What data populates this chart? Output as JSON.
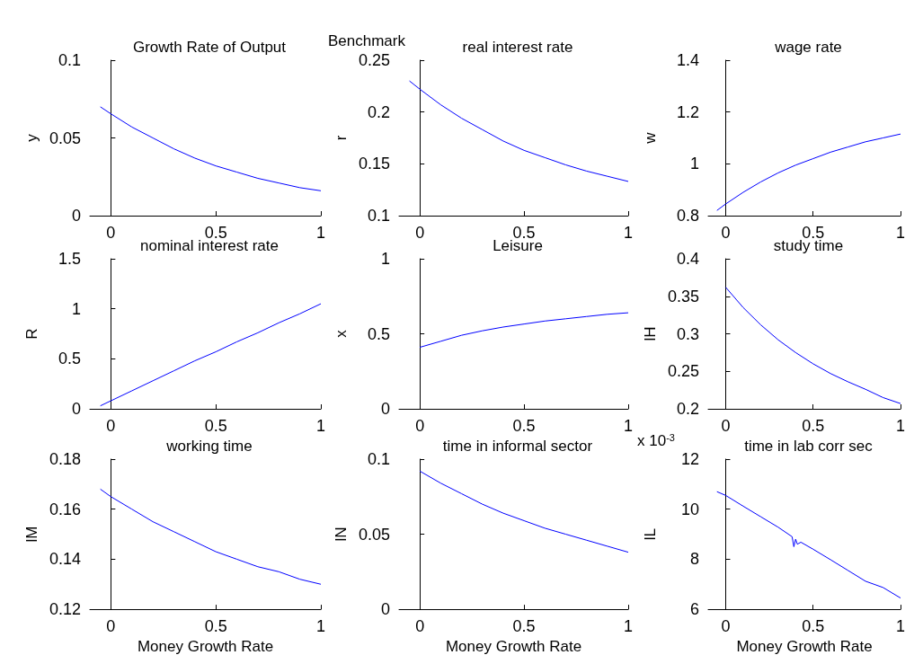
{
  "chart_data": [
    {
      "type": "line",
      "title": "Growth Rate of Output",
      "ylabel": "y",
      "color": "#0000ff",
      "xlim": [
        -0.1,
        1
      ],
      "xticks": [
        0,
        0.5,
        1
      ],
      "ylim": [
        0,
        0.1
      ],
      "yticks": [
        0,
        0.05,
        0.1
      ],
      "x": [
        -0.05,
        0,
        0.1,
        0.2,
        0.3,
        0.4,
        0.5,
        0.6,
        0.7,
        0.8,
        0.9,
        1
      ],
      "values": [
        0.07,
        0.0655,
        0.057,
        0.05,
        0.043,
        0.037,
        0.032,
        0.028,
        0.024,
        0.021,
        0.018,
        0.016
      ]
    },
    {
      "type": "line",
      "title": "real interest rate",
      "ylabel": "r",
      "annotations": [
        "Benchmark"
      ],
      "color": "#0000ff",
      "xlim": [
        -0.1,
        1
      ],
      "xticks": [
        0,
        0.5,
        1
      ],
      "ylim": [
        0.1,
        0.25
      ],
      "yticks": [
        0.1,
        0.15,
        0.2,
        0.25
      ],
      "x": [
        -0.05,
        0,
        0.1,
        0.2,
        0.3,
        0.4,
        0.5,
        0.6,
        0.7,
        0.8,
        0.9,
        1
      ],
      "values": [
        0.23,
        0.222,
        0.207,
        0.194,
        0.183,
        0.172,
        0.163,
        0.156,
        0.149,
        0.143,
        0.138,
        0.133
      ]
    },
    {
      "type": "line",
      "title": "wage rate",
      "ylabel": "w",
      "color": "#0000ff",
      "xlim": [
        -0.1,
        1
      ],
      "xticks": [
        0,
        0.5,
        1
      ],
      "ylim": [
        0.8,
        1.4
      ],
      "yticks": [
        0.8,
        1,
        1.2,
        1.4
      ],
      "x": [
        -0.05,
        0,
        0.1,
        0.2,
        0.3,
        0.4,
        0.5,
        0.6,
        0.7,
        0.8,
        0.9,
        1
      ],
      "values": [
        0.82,
        0.845,
        0.89,
        0.93,
        0.965,
        0.995,
        1.02,
        1.045,
        1.065,
        1.085,
        1.1,
        1.115
      ]
    },
    {
      "type": "line",
      "title": "nominal interest rate",
      "ylabel": "R",
      "color": "#0000ff",
      "xlim": [
        -0.1,
        1
      ],
      "xticks": [
        0,
        0.5,
        1
      ],
      "ylim": [
        0,
        1.5
      ],
      "yticks": [
        0,
        0.5,
        1,
        1.5
      ],
      "x": [
        -0.05,
        0,
        0.1,
        0.2,
        0.3,
        0.4,
        0.5,
        0.6,
        0.7,
        0.8,
        0.9,
        1
      ],
      "values": [
        0.03,
        0.08,
        0.18,
        0.28,
        0.38,
        0.48,
        0.57,
        0.67,
        0.76,
        0.86,
        0.95,
        1.05
      ]
    },
    {
      "type": "line",
      "title": "Leisure",
      "ylabel": "x",
      "color": "#0000ff",
      "xlim": [
        -0.1,
        1
      ],
      "xticks": [
        0,
        0.5,
        1
      ],
      "ylim": [
        0,
        1
      ],
      "yticks": [
        0,
        0.5,
        1
      ],
      "x": [
        0,
        0.1,
        0.2,
        0.3,
        0.4,
        0.5,
        0.6,
        0.7,
        0.8,
        0.9,
        1
      ],
      "values": [
        0.41,
        0.45,
        0.49,
        0.52,
        0.545,
        0.565,
        0.585,
        0.6,
        0.615,
        0.63,
        0.64
      ]
    },
    {
      "type": "line",
      "title": "study time",
      "ylabel": "lH",
      "color": "#0000ff",
      "xlim": [
        -0.1,
        1
      ],
      "xticks": [
        0,
        0.5,
        1
      ],
      "ylim": [
        0.2,
        0.4
      ],
      "yticks": [
        0.2,
        0.25,
        0.3,
        0.35,
        0.4
      ],
      "x": [
        0,
        0.1,
        0.2,
        0.3,
        0.4,
        0.5,
        0.6,
        0.7,
        0.8,
        0.9,
        1
      ],
      "values": [
        0.362,
        0.335,
        0.312,
        0.292,
        0.275,
        0.26,
        0.247,
        0.236,
        0.226,
        0.215,
        0.207
      ]
    },
    {
      "type": "line",
      "title": "working time",
      "ylabel": "lM",
      "xlabel": "Money Growth Rate",
      "color": "#0000ff",
      "xlim": [
        -0.1,
        1
      ],
      "xticks": [
        0,
        0.5,
        1
      ],
      "ylim": [
        0.12,
        0.18
      ],
      "yticks": [
        0.12,
        0.14,
        0.16,
        0.18
      ],
      "x": [
        -0.05,
        0,
        0.1,
        0.2,
        0.3,
        0.4,
        0.5,
        0.6,
        0.7,
        0.8,
        0.9,
        1
      ],
      "values": [
        0.168,
        0.165,
        0.16,
        0.155,
        0.151,
        0.147,
        0.143,
        0.14,
        0.137,
        0.135,
        0.132,
        0.13
      ]
    },
    {
      "type": "line",
      "title": "time in informal sector",
      "ylabel": "lN",
      "xlabel": "Money Growth Rate",
      "color": "#0000ff",
      "xlim": [
        -0.1,
        1
      ],
      "xticks": [
        0,
        0.5,
        1
      ],
      "ylim": [
        0,
        0.1
      ],
      "yticks": [
        0,
        0.05,
        0.1
      ],
      "x": [
        0,
        0.1,
        0.2,
        0.3,
        0.4,
        0.5,
        0.6,
        0.7,
        0.8,
        0.9,
        1
      ],
      "values": [
        0.092,
        0.084,
        0.077,
        0.07,
        0.064,
        0.059,
        0.054,
        0.05,
        0.046,
        0.042,
        0.038
      ]
    },
    {
      "type": "line",
      "title": "time in lab corr sec",
      "ylabel": "lL",
      "xlabel": "Money Growth Rate",
      "annotations": [
        "x 10$^{-3}$"
      ],
      "color": "#0000ff",
      "xlim": [
        -0.1,
        1
      ],
      "xticks": [
        0,
        0.5,
        1
      ],
      "ylim": [
        6,
        12
      ],
      "yticks": [
        6,
        8,
        10,
        12
      ],
      "x": [
        -0.05,
        0,
        0.1,
        0.2,
        0.3,
        0.38,
        0.39,
        0.4,
        0.41,
        0.43,
        0.5,
        0.6,
        0.7,
        0.8,
        0.9,
        1
      ],
      "values": [
        10.7,
        10.55,
        10.12,
        9.7,
        9.28,
        8.9,
        8.5,
        8.8,
        8.6,
        8.68,
        8.4,
        7.98,
        7.55,
        7.12,
        6.87,
        6.45
      ]
    }
  ]
}
